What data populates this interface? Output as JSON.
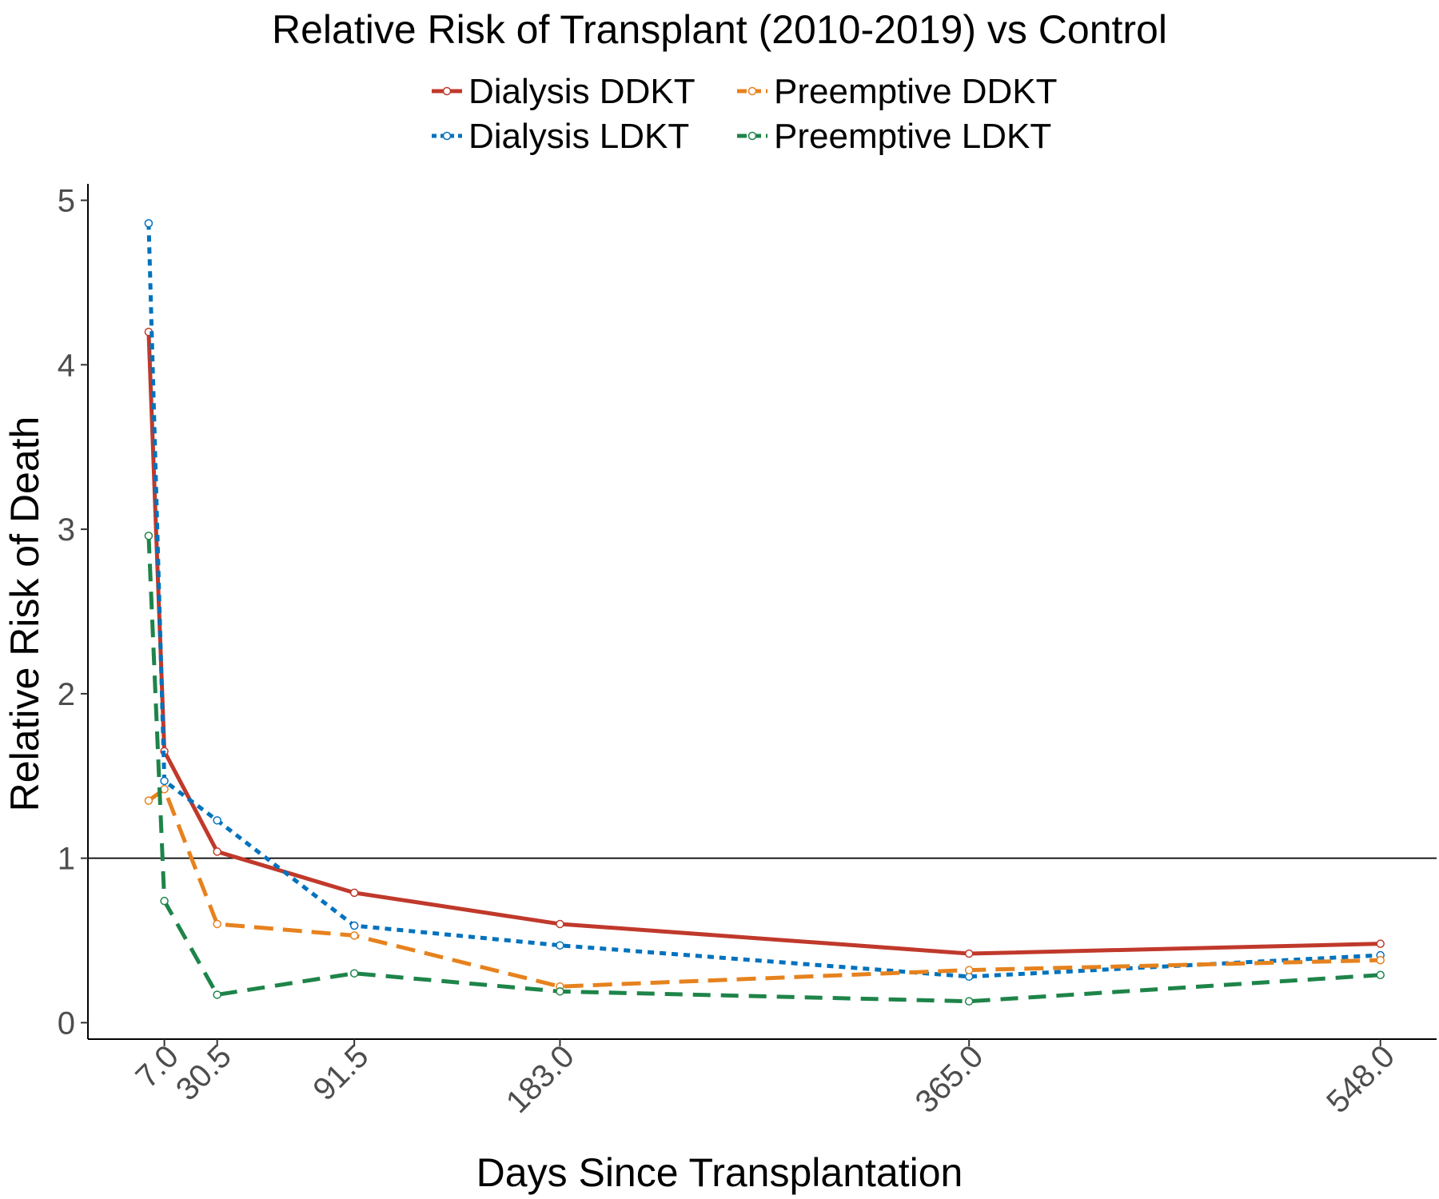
{
  "chart_data": {
    "type": "line",
    "title": "Relative Risk of Transplant (2010-2019) vs Control",
    "xlabel": "Days Since Transplantation",
    "ylabel": "Relative Risk of Death",
    "x_ticks": [
      "7.0",
      "30.5",
      "91.5",
      "183.0",
      "365.0",
      "548.0"
    ],
    "y_ticks": [
      "0",
      "1",
      "2",
      "3",
      "4",
      "5"
    ],
    "xlim": [
      -27,
      573
    ],
    "ylim": [
      -0.1,
      5.1
    ],
    "reference_line": 1,
    "grid": false,
    "legend_position": "top",
    "series": [
      {
        "name": "Dialysis DDKT",
        "color": "#c0392b",
        "dash": "solid",
        "points": [
          {
            "x": 0,
            "y": 4.2
          },
          {
            "x": 7.0,
            "y": 1.65
          },
          {
            "x": 30.5,
            "y": 1.04
          },
          {
            "x": 91.5,
            "y": 0.79
          },
          {
            "x": 183.0,
            "y": 0.6
          },
          {
            "x": 365.0,
            "y": 0.42
          },
          {
            "x": 548.0,
            "y": 0.48
          }
        ]
      },
      {
        "name": "Dialysis LDKT",
        "color": "#0072bd",
        "dash": "dotted",
        "points": [
          {
            "x": 0,
            "y": 4.86
          },
          {
            "x": 7.0,
            "y": 1.47
          },
          {
            "x": 30.5,
            "y": 1.23
          },
          {
            "x": 91.5,
            "y": 0.59
          },
          {
            "x": 183.0,
            "y": 0.47
          },
          {
            "x": 365.0,
            "y": 0.28
          },
          {
            "x": 548.0,
            "y": 0.41
          }
        ]
      },
      {
        "name": "Preemptive DDKT",
        "color": "#e6821e",
        "dash": "longdash",
        "points": [
          {
            "x": 0,
            "y": 1.35
          },
          {
            "x": 7.0,
            "y": 1.42
          },
          {
            "x": 30.5,
            "y": 0.6
          },
          {
            "x": 91.5,
            "y": 0.53
          },
          {
            "x": 183.0,
            "y": 0.22
          },
          {
            "x": 365.0,
            "y": 0.32
          },
          {
            "x": 548.0,
            "y": 0.38
          }
        ]
      },
      {
        "name": "Preemptive LDKT",
        "color": "#1e8449",
        "dash": "dashed",
        "points": [
          {
            "x": 0,
            "y": 2.96
          },
          {
            "x": 7.0,
            "y": 0.74
          },
          {
            "x": 30.5,
            "y": 0.17
          },
          {
            "x": 91.5,
            "y": 0.3
          },
          {
            "x": 183.0,
            "y": 0.19
          },
          {
            "x": 365.0,
            "y": 0.13
          },
          {
            "x": 548.0,
            "y": 0.29
          }
        ]
      }
    ]
  }
}
